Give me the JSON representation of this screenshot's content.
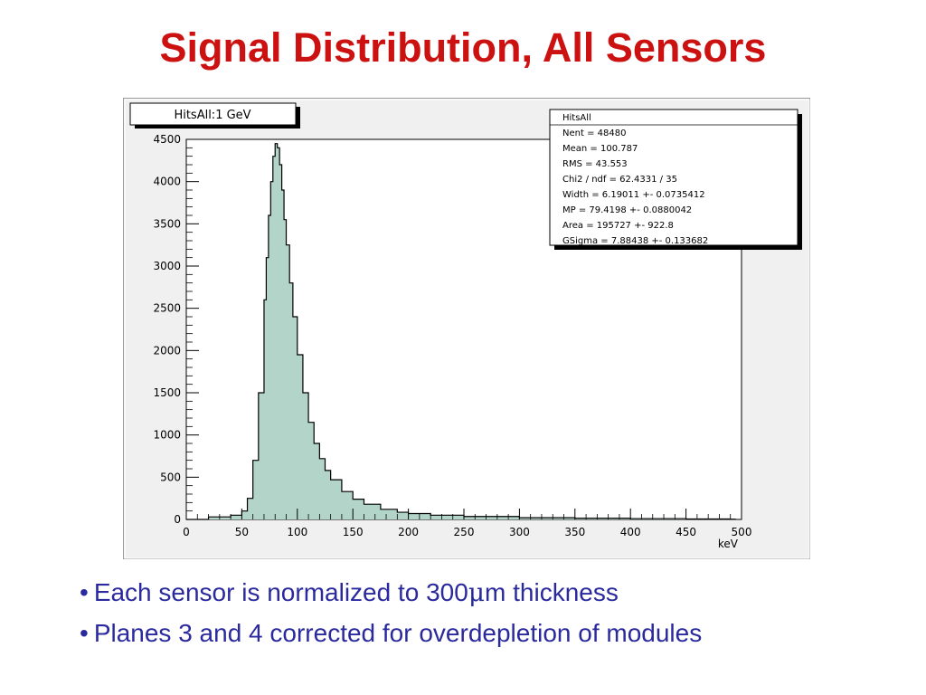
{
  "slide": {
    "title": "Signal Distribution, All Sensors",
    "bullets": [
      {
        "text": "Each sensor is normalized to 300",
        "symbol": "μ",
        "suffix": "m thickness"
      },
      {
        "text": "Planes 3 and 4 corrected for overdepletion of modules"
      }
    ]
  },
  "colors": {
    "title": "#cc1111",
    "bullets": "#2a2a9e",
    "histogram_fill": "#b3d4c8",
    "histogram_line": "#000000",
    "canvas": "#f0f0f0"
  },
  "chart_data": {
    "type": "area",
    "title": "HitsAll:1 GeV",
    "xlabel": "keV",
    "ylabel": "",
    "xlim": [
      0,
      500
    ],
    "ylim": [
      0,
      4500
    ],
    "x_ticks": [
      0,
      50,
      100,
      150,
      200,
      250,
      300,
      350,
      400,
      450,
      500
    ],
    "y_ticks": [
      0,
      500,
      1000,
      1500,
      2000,
      2500,
      3000,
      3500,
      4000,
      4500
    ],
    "grid": false,
    "stats_box": {
      "name": "HitsAll",
      "lines": [
        "Nent = 48480",
        "Mean  = 100.787",
        "RMS   = 43.553",
        "Chi2 / ndf = 62.4331 / 35",
        "Width    = 6.19011 +- 0.0735412",
        "MP       = 79.4198 +- 0.0880042",
        "Area     = 195727 +- 922.8",
        "GSigma   = 7.88438 +- 0.133682"
      ]
    },
    "x": [
      0,
      20,
      40,
      50,
      55,
      60,
      65,
      70,
      72,
      74,
      76,
      78,
      80,
      82,
      84,
      86,
      88,
      90,
      93,
      96,
      100,
      105,
      110,
      115,
      120,
      125,
      130,
      140,
      150,
      160,
      175,
      190,
      200,
      220,
      250,
      300,
      350,
      400,
      450,
      490
    ],
    "values": [
      0,
      30,
      50,
      100,
      250,
      700,
      1500,
      2600,
      3100,
      3600,
      4000,
      4300,
      4450,
      4400,
      4200,
      3900,
      3550,
      3250,
      2800,
      2400,
      1950,
      1500,
      1150,
      900,
      720,
      580,
      470,
      330,
      240,
      180,
      120,
      85,
      70,
      50,
      35,
      20,
      15,
      10,
      5,
      3
    ]
  }
}
